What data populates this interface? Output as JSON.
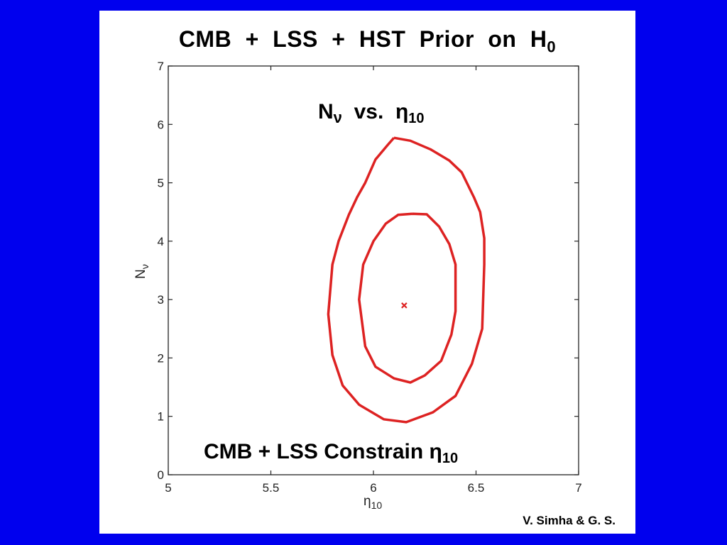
{
  "slide": {
    "title_main": "CMB  +  LSS  +  HST  Prior  on  H",
    "title_sub": "0",
    "credit": "V. Simha & G. S.",
    "background_color": "#0000ee",
    "panel_color": "#ffffff"
  },
  "chart_data": {
    "type": "line",
    "title": "Nν  vs.  η10",
    "title_main": "N",
    "title_main_sub": "ν",
    "title_mid": "  vs.  ",
    "title_eta": "η",
    "title_eta_sub": "10",
    "annotation_main": "CMB + LSS Constrain ",
    "annotation_eta": "η",
    "annotation_eta_sub": "10",
    "xlabel_main": "η",
    "xlabel_sub": "10",
    "ylabel_main": "N",
    "ylabel_sub": "ν",
    "xlim": [
      5,
      7
    ],
    "ylim": [
      0,
      7
    ],
    "xticks": [
      "5",
      "5.5",
      "6",
      "6.5",
      "7"
    ],
    "yticks": [
      "0",
      "1",
      "2",
      "3",
      "4",
      "5",
      "6",
      "7"
    ],
    "grid": false,
    "legend": "none",
    "line_color": "#dd2222",
    "series": [
      {
        "x": [
          6.1,
          6.18,
          6.28,
          6.37,
          6.43,
          6.49,
          6.52,
          6.54,
          6.54,
          6.53,
          6.48,
          6.4,
          6.29,
          6.16,
          6.05,
          5.93,
          5.85,
          5.8,
          5.78,
          5.8,
          5.83,
          5.88,
          5.92,
          5.96,
          6.01,
          6.07,
          6.1
        ],
        "y": [
          5.77,
          5.72,
          5.57,
          5.38,
          5.18,
          4.75,
          4.5,
          4.05,
          3.6,
          2.5,
          1.9,
          1.35,
          1.07,
          0.9,
          0.95,
          1.2,
          1.53,
          2.05,
          2.75,
          3.6,
          4.0,
          4.45,
          4.75,
          5.0,
          5.4,
          5.65,
          5.77
        ]
      },
      {
        "x": [
          6.19,
          6.26,
          6.32,
          6.37,
          6.4,
          6.4,
          6.38,
          6.33,
          6.25,
          6.18,
          6.1,
          6.01,
          5.96,
          5.93,
          5.95,
          6.0,
          6.06,
          6.12,
          6.19
        ],
        "y": [
          4.47,
          4.46,
          4.25,
          3.95,
          3.6,
          2.8,
          2.4,
          1.95,
          1.7,
          1.58,
          1.65,
          1.85,
          2.2,
          3.0,
          3.6,
          4.0,
          4.3,
          4.45,
          4.47
        ]
      }
    ],
    "best_fit": {
      "x": 6.15,
      "y": 2.9,
      "marker": "x"
    }
  }
}
